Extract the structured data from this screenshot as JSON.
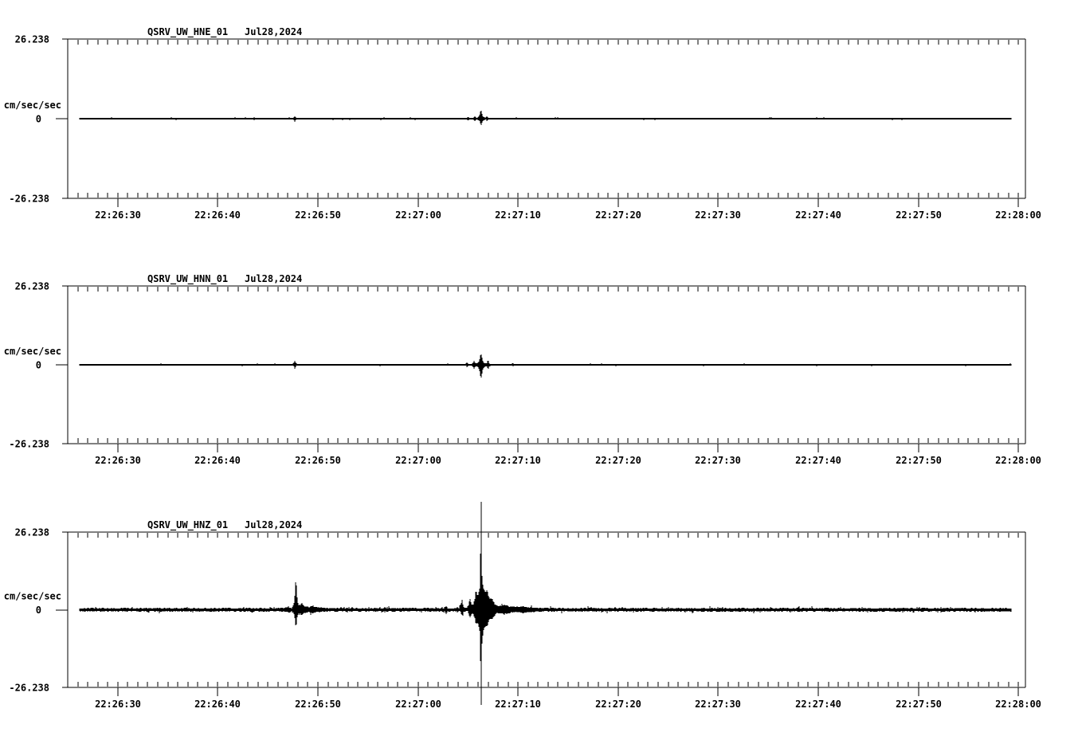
{
  "figure": {
    "background": "#ffffff",
    "ink": "#000000",
    "kind": "three-component seismogram strip plot"
  },
  "chart_data": [
    {
      "type": "line",
      "title": "QSRV_UW_HNE_01",
      "date": "Jul28,2024",
      "ylabel": "cm/sec/sec",
      "ytick_labels": [
        "26.238",
        "0",
        "-26.238"
      ],
      "ylim": [
        -26.238,
        26.238
      ],
      "xtick_labels": [
        "22:26:30",
        "22:26:40",
        "22:26:50",
        "22:27:00",
        "22:27:10",
        "22:27:20",
        "22:27:30",
        "22:27:40",
        "22:27:50",
        "22:28:00"
      ],
      "x_start": "22:26:25",
      "x_end": "22:28:00.7",
      "minor_tick_seconds": 1,
      "major_tick_seconds": 10,
      "trace_start": "22:26:26.2",
      "trace_end": "22:27:59.3",
      "baseline_value": 0,
      "noise_amplitude": 0.05,
      "spikes": [
        {
          "time": "22:26:47.7",
          "up": 0.5,
          "down": 0.8,
          "w": 0.4
        },
        {
          "time": "22:27:05.0",
          "up": 0.35,
          "down": 0.3,
          "w": 0.4
        },
        {
          "time": "22:27:05.7",
          "up": 0.5,
          "down": 0.45,
          "w": 0.6
        },
        {
          "time": "22:27:06.3",
          "up": 2.4,
          "down": 1.7,
          "w": 1.2
        },
        {
          "time": "22:27:06.9",
          "up": 0.5,
          "down": 0.4,
          "w": 0.5
        }
      ]
    },
    {
      "type": "line",
      "title": "QSRV_UW_HNN_01",
      "date": "Jul28,2024",
      "ylabel": "cm/sec/sec",
      "ytick_labels": [
        "26.238",
        "0",
        "-26.238"
      ],
      "ylim": [
        -26.238,
        26.238
      ],
      "xtick_labels": [
        "22:26:30",
        "22:26:40",
        "22:26:50",
        "22:27:00",
        "22:27:10",
        "22:27:20",
        "22:27:30",
        "22:27:40",
        "22:27:50",
        "22:28:00"
      ],
      "x_start": "22:26:25",
      "x_end": "22:28:00.7",
      "minor_tick_seconds": 1,
      "major_tick_seconds": 10,
      "trace_start": "22:26:26.2",
      "trace_end": "22:27:59.3",
      "baseline_value": 0,
      "noise_amplitude": 0.05,
      "spikes": [
        {
          "time": "22:26:47.7",
          "up": 1.0,
          "down": 0.9,
          "w": 0.6
        },
        {
          "time": "22:27:04.9",
          "up": 0.4,
          "down": 0.35,
          "w": 0.4
        },
        {
          "time": "22:27:05.6",
          "up": 1.0,
          "down": 1.0,
          "w": 0.7
        },
        {
          "time": "22:27:06.3",
          "up": 3.2,
          "down": 4.0,
          "w": 1.6
        },
        {
          "time": "22:27:07.0",
          "up": 0.9,
          "down": 0.9,
          "w": 0.8
        },
        {
          "time": "22:27:09.5",
          "up": 0.25,
          "down": 0.25,
          "w": 0.4
        }
      ]
    },
    {
      "type": "line",
      "title": "QSRV_UW_HNZ_01",
      "date": "Jul28,2024",
      "ylabel": "cm/sec/sec",
      "ytick_labels": [
        "26.238",
        "0",
        "-26.238"
      ],
      "ylim": [
        -26.238,
        26.238
      ],
      "xtick_labels": [
        "22:26:30",
        "22:26:40",
        "22:26:50",
        "22:27:00",
        "22:27:10",
        "22:27:20",
        "22:27:30",
        "22:27:40",
        "22:27:50",
        "22:28:00"
      ],
      "x_start": "22:26:25",
      "x_end": "22:28:00.7",
      "minor_tick_seconds": 1,
      "major_tick_seconds": 10,
      "trace_start": "22:26:26.2",
      "trace_end": "22:27:59.3",
      "baseline_value": 0,
      "noise_amplitude": 0.38,
      "spikes": [
        {
          "time": "22:26:47.0",
          "up": 0.5,
          "down": 0.4,
          "w": 3
        },
        {
          "time": "22:26:47.8",
          "up": 8.5,
          "down": 4.8,
          "w": 1.2
        },
        {
          "time": "22:26:48.4",
          "up": 1.5,
          "down": 1.2,
          "w": 3
        },
        {
          "time": "22:26:49.5",
          "up": 0.8,
          "down": 0.7,
          "w": 6
        },
        {
          "time": "22:27:02.8",
          "up": 0.9,
          "down": 0.7,
          "w": 0.8
        },
        {
          "time": "22:27:04.4",
          "up": 2.6,
          "down": 1.4,
          "w": 0.9
        },
        {
          "time": "22:27:05.2",
          "up": 2.8,
          "down": 1.6,
          "w": 1.2
        },
        {
          "time": "22:27:05.8",
          "up": 3.5,
          "down": 2.2,
          "w": 1.4
        },
        {
          "time": "22:27:06.3",
          "up": 25.6,
          "down": 21.8,
          "w": 0.25
        },
        {
          "time": "22:27:06.35",
          "up": 9.7,
          "down": 9.7,
          "w": 4.0
        },
        {
          "time": "22:27:06.9",
          "up": 3.3,
          "down": 2.6,
          "w": 3
        },
        {
          "time": "22:27:07.4",
          "up": 2.0,
          "down": 1.6,
          "w": 4
        },
        {
          "time": "22:27:08.6",
          "up": 1.0,
          "down": 0.9,
          "w": 8
        },
        {
          "time": "22:27:10.5",
          "up": 0.6,
          "down": 0.55,
          "w": 12
        }
      ]
    }
  ]
}
